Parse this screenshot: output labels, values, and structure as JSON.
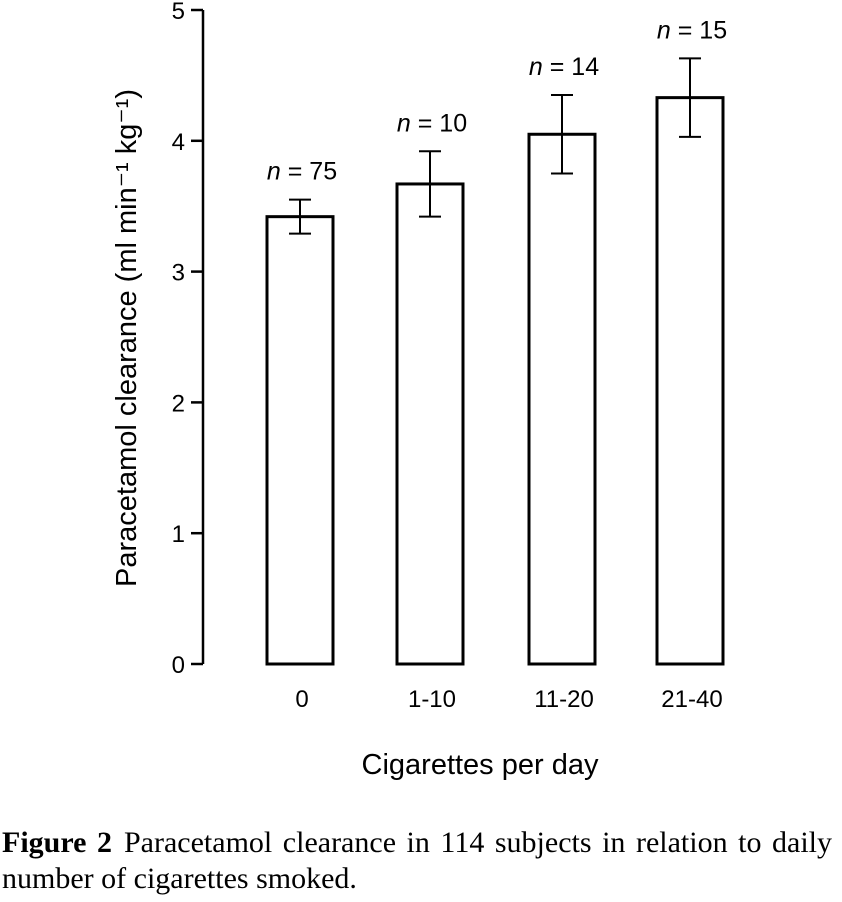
{
  "chart_data": {
    "type": "bar",
    "categories": [
      "0",
      "1-10",
      "11-20",
      "21-40"
    ],
    "values": [
      3.42,
      3.67,
      4.05,
      4.33
    ],
    "errors": [
      0.13,
      0.25,
      0.3,
      0.3
    ],
    "n_labels": [
      "n = 75",
      "n = 10",
      "n = 14",
      "n = 15"
    ],
    "xlabel": "Cigarettes per day",
    "ylabel": "Paracetamol clearance (ml min⁻¹ kg⁻¹)",
    "ylim": [
      0,
      5
    ],
    "yticks": [
      "0",
      "1",
      "2",
      "3",
      "4",
      "5"
    ],
    "grid": false
  },
  "caption": {
    "label": "Figure 2",
    "text": "Paracetamol clearance in 114 subjects in relation to daily number of cigarettes smoked."
  }
}
